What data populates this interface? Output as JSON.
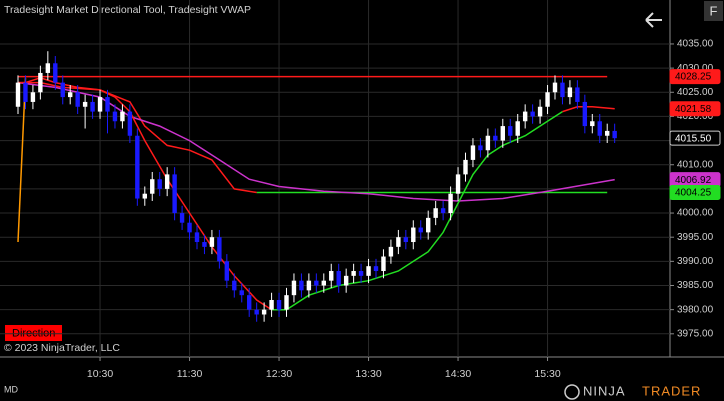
{
  "chart_data": {
    "type": "candlestick",
    "title": "Tradesight Market Directional Tool, Tradesight VWAP",
    "x": [
      "9:35",
      "9:40",
      "9:45",
      "9:50",
      "9:55",
      "10:00",
      "10:05",
      "10:10",
      "10:15",
      "10:20",
      "10:25",
      "10:30",
      "10:35",
      "10:40",
      "10:45",
      "10:50",
      "10:55",
      "11:00",
      "11:05",
      "11:10",
      "11:15",
      "11:20",
      "11:25",
      "11:30",
      "11:35",
      "11:40",
      "11:45",
      "11:50",
      "11:55",
      "12:00",
      "12:05",
      "12:10",
      "12:15",
      "12:20",
      "12:25",
      "12:30",
      "12:35",
      "12:40",
      "12:45",
      "12:50",
      "12:55",
      "13:00",
      "13:05",
      "13:10",
      "13:15",
      "13:20",
      "13:25",
      "13:30",
      "13:35",
      "13:40",
      "13:45",
      "13:50",
      "13:55",
      "14:00",
      "14:05",
      "14:10",
      "14:15",
      "14:20",
      "14:25",
      "14:30",
      "14:35",
      "14:40",
      "14:45",
      "14:50",
      "14:55",
      "15:00",
      "15:05",
      "15:10",
      "15:15",
      "15:20",
      "15:25",
      "15:30",
      "15:35",
      "15:40",
      "15:45",
      "15:50",
      "15:55",
      "16:00",
      "16:05",
      "16:10",
      "16:15"
    ],
    "open": [
      4022,
      4027,
      4023,
      4025,
      4029,
      4031,
      4027,
      4024,
      4025,
      4022,
      4023,
      4021,
      4024,
      4021,
      4019,
      4021,
      4016,
      4003,
      4004,
      4007,
      4005,
      4008,
      4000,
      3998,
      3996,
      3994,
      3993,
      3995,
      3990,
      3986,
      3984,
      3983,
      3980,
      3979,
      3980,
      3982,
      3980,
      3983,
      3986,
      3984,
      3986,
      3985,
      3986,
      3988,
      3985,
      3987,
      3988,
      3987,
      3989,
      3988,
      3991,
      3993,
      3995,
      3994,
      3997,
      3996,
      3999,
      4001,
      4000,
      4004,
      4008,
      4011,
      4014,
      4013,
      4016,
      4015,
      4018,
      4016,
      4019,
      4021,
      4020,
      4022,
      4025,
      4027,
      4024,
      4026,
      4023,
      4018,
      4019,
      4016,
      4017
    ],
    "high": [
      4028.5,
      4028.5,
      4026.5,
      4030.5,
      4033.5,
      4032.5,
      4028.5,
      4026.5,
      4026.5,
      4024.5,
      4024.5,
      4025.5,
      4025.5,
      4022.5,
      4022.5,
      4022.5,
      4017.5,
      4005.5,
      4008.5,
      4008.5,
      4009.5,
      4009.5,
      4001.5,
      3999.5,
      3997.5,
      3995.5,
      3996.5,
      3996.5,
      3991.5,
      3987.5,
      3985.5,
      3984.5,
      3981.5,
      3981.5,
      3983.5,
      3983.5,
      3984.5,
      3987.5,
      3987.5,
      3987.5,
      3987.5,
      3987.5,
      3989.5,
      3989.5,
      3988.5,
      3989.5,
      3989.5,
      3990.5,
      3990.5,
      3992.5,
      3994.5,
      3996.5,
      3996.5,
      3998.5,
      3998.5,
      4000.5,
      4002.5,
      4002.5,
      4005.5,
      4009.5,
      4012.5,
      4015.5,
      4015.5,
      4017.5,
      4017.5,
      4019.5,
      4019.5,
      4020.5,
      4022.5,
      4022.5,
      4023.5,
      4026.5,
      4028.5,
      4028.5,
      4027.5,
      4027.5,
      4024.5,
      4020.5,
      4020.5,
      4018.5,
      4018.5
    ],
    "low": [
      4020.5,
      4021.5,
      4021.5,
      4023.5,
      4027.5,
      4025.5,
      4022.5,
      4022.5,
      4020.5,
      4017.5,
      4019.5,
      4019.5,
      4016.5,
      4017.5,
      4017.5,
      4014.5,
      4001.5,
      4001.5,
      4002.5,
      4003.5,
      4003.5,
      3998.5,
      3996.5,
      3994.5,
      3992.5,
      3991.5,
      3991.5,
      3988.5,
      3984.5,
      3982.5,
      3981.5,
      3978.5,
      3977.5,
      3977.5,
      3978.5,
      3978.5,
      3978.5,
      3981.5,
      3982.5,
      3982.5,
      3983.5,
      3983.5,
      3984.5,
      3983.5,
      3983.5,
      3985.5,
      3985.5,
      3985.5,
      3986.5,
      3986.5,
      3989.5,
      3991.5,
      3992.5,
      3992.5,
      3994.5,
      3994.5,
      3997.5,
      3998.5,
      3998.5,
      4002.5,
      4006.5,
      4009.5,
      4011.5,
      4011.5,
      4013.5,
      4013.5,
      4014.5,
      4014.5,
      4017.5,
      4018.5,
      4018.5,
      4020.5,
      4023.5,
      4022.5,
      4022.5,
      4021.5,
      4016.5,
      4016.5,
      4014.5,
      4014.5,
      4014.5
    ],
    "close": [
      4027,
      4023,
      4025,
      4029,
      4031,
      4027,
      4024,
      4025,
      4022,
      4023,
      4021,
      4024,
      4021,
      4019,
      4021,
      4016,
      4003,
      4004,
      4007,
      4005,
      4008,
      4000,
      3998,
      3996,
      3994,
      3993,
      3995,
      3990,
      3986,
      3984,
      3983,
      3980,
      3979,
      3980,
      3982,
      3980,
      3983,
      3986,
      3984,
      3986,
      3985,
      3986,
      3988,
      3985,
      3987,
      3988,
      3987,
      3989,
      3988,
      3991,
      3993,
      3995,
      3994,
      3997,
      3996,
      3999,
      4001,
      4000,
      4004,
      4008,
      4011,
      4014,
      4013,
      4016,
      4015,
      4018,
      4016,
      4019,
      4021,
      4020,
      4022,
      4025,
      4027,
      4024,
      4026,
      4023,
      4018,
      4019,
      4016,
      4017,
      4015.5
    ],
    "up_color": "#ffffff",
    "down_color": "#1a1aff",
    "xticks": [
      "10:30",
      "11:30",
      "12:30",
      "13:30",
      "14:30",
      "15:30"
    ],
    "ylim": [
      3970.2,
      4044.1
    ],
    "yticks": [
      {
        "value": 3975,
        "label": "3975.00"
      },
      {
        "value": 3980,
        "label": "3980.00"
      },
      {
        "value": 3985,
        "label": "3985.00"
      },
      {
        "value": 3990,
        "label": "3990.00"
      },
      {
        "value": 3995,
        "label": "3995.00"
      },
      {
        "value": 4000,
        "label": "4000.00"
      },
      {
        "value": 4005,
        "label": "4005.00"
      },
      {
        "value": 4010,
        "label": "4010.00"
      },
      {
        "value": 4015,
        "label": "4015.00"
      },
      {
        "value": 4020,
        "label": "4020.00"
      },
      {
        "value": 4025,
        "label": "4025.00"
      },
      {
        "value": 4030,
        "label": "4030.00"
      },
      {
        "value": 4035,
        "label": "4035.00"
      }
    ],
    "lines": [
      {
        "color": "#ff9900",
        "x": [
          "9:35",
          "9:40"
        ],
        "values": [
          3994,
          4028
        ]
      },
      {
        "color": "#ff1a1a",
        "x": [
          "9:35",
          "9:50",
          "10:05",
          "10:30",
          "10:50",
          "11:00",
          "11:15",
          "11:30",
          "11:45",
          "12:00",
          "12:15"
        ],
        "values": [
          4027,
          4027,
          4026,
          4025.5,
          4023,
          4018,
          4014,
          4013,
          4011,
          4005,
          4004.25
        ]
      },
      {
        "color": "#cc33cc",
        "x": [
          "9:35",
          "10:00",
          "10:30",
          "10:50",
          "11:10",
          "11:30",
          "11:50",
          "12:10",
          "12:30",
          "13:00",
          "13:30",
          "14:00",
          "14:30",
          "15:00",
          "15:30",
          "16:15"
        ],
        "values": [
          4027,
          4026,
          4024,
          4020,
          4018,
          4015,
          4011,
          4007,
          4005.5,
          4004.5,
          4004,
          4003,
          4002.5,
          4003,
          4004.5,
          4006.92
        ]
      },
      {
        "color": "#ff1a1a",
        "x": [
          "9:35",
          "9:40",
          "9:50",
          "10:00",
          "10:15",
          "10:30",
          "10:40",
          "10:50",
          "11:00",
          "11:15",
          "11:30",
          "11:45",
          "12:00",
          "12:15",
          "12:25"
        ],
        "values": [
          4027,
          4027,
          4028,
          4027,
          4026,
          4025.5,
          4024,
          4021,
          4015,
          4007,
          4000,
          3993,
          3987,
          3982,
          3980
        ]
      },
      {
        "color": "#22dd22",
        "x": [
          "12:25",
          "12:35",
          "12:50",
          "13:10",
          "13:30",
          "13:50",
          "14:10",
          "14:20",
          "14:30",
          "14:40",
          "14:50",
          "15:00",
          "15:15",
          "15:30",
          "15:40"
        ],
        "values": [
          3980,
          3980,
          3983,
          3985,
          3986,
          3988,
          3992,
          3996,
          4002,
          4008,
          4012,
          4014,
          4016,
          4019,
          4021
        ]
      },
      {
        "color": "#ff1a1a",
        "x": [
          "15:40",
          "15:50",
          "16:00",
          "16:15"
        ],
        "values": [
          4021,
          4022,
          4022,
          4021.58
        ]
      }
    ],
    "levels": [
      {
        "value": 4028.25,
        "color": "#ff1a1a",
        "x": [
          "9:35",
          "16:10"
        ]
      },
      {
        "value": 4004.25,
        "color": "#22dd22",
        "x": [
          "12:15",
          "16:10"
        ]
      }
    ],
    "markers": [
      {
        "value": 4028.25,
        "label": "4028.25",
        "color": "#ff1a1a"
      },
      {
        "value": 4021.58,
        "label": "4021.58",
        "color": "#ff1a1a"
      },
      {
        "value": 4015.5,
        "label": "4015.50",
        "color": "#000000"
      },
      {
        "value": 4006.92,
        "label": "4006.92",
        "color": "#cc33cc"
      },
      {
        "value": 4004.25,
        "label": "4004.25",
        "color": "#22dd22"
      }
    ],
    "button": "Direction",
    "copyright": "© 2023 NinjaTrader, LLC",
    "footer_left": "MD",
    "logo": [
      "NINJA",
      "TRADER"
    ],
    "panel_button": "F"
  }
}
